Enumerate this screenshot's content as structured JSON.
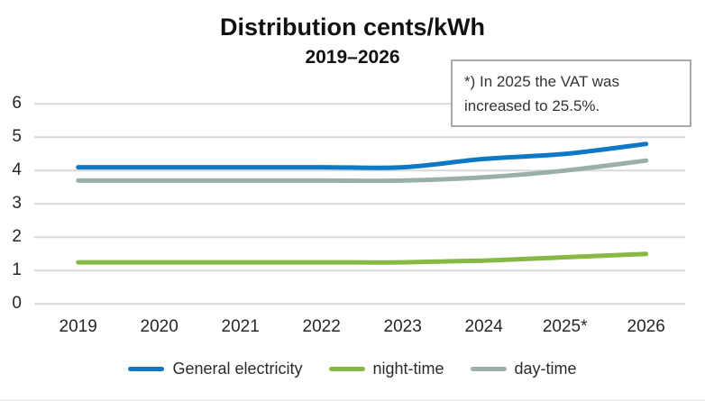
{
  "header": {
    "title": "Distribution cents/kWh",
    "subtitle": "2019–2026"
  },
  "annotation": {
    "text": "*) In 2025 the VAT was increased to 25.5%."
  },
  "chart_data": {
    "type": "line",
    "title": "Distribution cents/kWh",
    "subtitle": "2019–2026",
    "categories": [
      "2019",
      "2020",
      "2021",
      "2022",
      "2023",
      "2024",
      "2025*",
      "2026"
    ],
    "series": [
      {
        "name": "General electricity",
        "color": "#0d79c4",
        "values": [
          4.1,
          4.1,
          4.1,
          4.1,
          4.1,
          4.35,
          4.5,
          4.8
        ]
      },
      {
        "name": "night-time",
        "color": "#86b845",
        "values": [
          1.25,
          1.25,
          1.25,
          1.25,
          1.25,
          1.3,
          1.4,
          1.5
        ]
      },
      {
        "name": "day-time",
        "color": "#9ab0a7",
        "values": [
          3.7,
          3.7,
          3.7,
          3.7,
          3.7,
          3.8,
          4.0,
          4.3
        ]
      }
    ],
    "xlabel": "",
    "ylabel": "",
    "ylim": [
      0,
      6
    ],
    "yticks": [
      0,
      1,
      2,
      3,
      4,
      5,
      6
    ],
    "grid": true,
    "gridline_color": "#d9d9d9",
    "smooth": true,
    "legend_position": "bottom",
    "annotation_text": "*) In 2025 the VAT was increased to 25.5%.",
    "annotation_border_color": "#a8a8a8"
  }
}
